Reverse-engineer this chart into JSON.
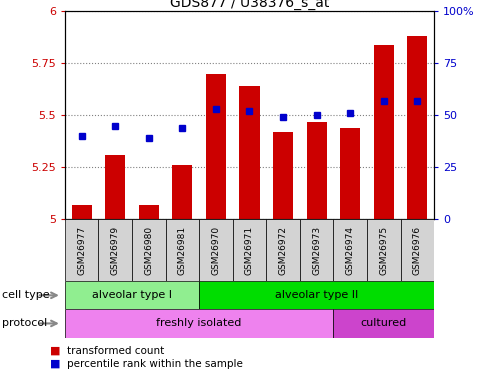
{
  "title": "GDS877 / U38376_s_at",
  "samples": [
    "GSM26977",
    "GSM26979",
    "GSM26980",
    "GSM26981",
    "GSM26970",
    "GSM26971",
    "GSM26972",
    "GSM26973",
    "GSM26974",
    "GSM26975",
    "GSM26976"
  ],
  "transformed_count": [
    5.07,
    5.31,
    5.07,
    5.26,
    5.7,
    5.64,
    5.42,
    5.47,
    5.44,
    5.84,
    5.88
  ],
  "percentile_rank": [
    40,
    45,
    39,
    44,
    53,
    52,
    49,
    50,
    51,
    57,
    57
  ],
  "ylim_left": [
    5.0,
    6.0
  ],
  "ylim_right": [
    0,
    100
  ],
  "yticks_left": [
    5.0,
    5.25,
    5.5,
    5.75,
    6.0
  ],
  "yticks_right": [
    0,
    25,
    50,
    75,
    100
  ],
  "ytick_labels_left": [
    "5",
    "5.25",
    "5.5",
    "5.75",
    "6"
  ],
  "ytick_labels_right": [
    "0",
    "25",
    "50",
    "75",
    "100%"
  ],
  "bar_color": "#cc0000",
  "dot_color": "#0000cc",
  "bar_bottom": 5.0,
  "cell_type_groups": [
    {
      "label": "alveolar type I",
      "start": 0,
      "end": 3,
      "color": "#90ee90"
    },
    {
      "label": "alveolar type II",
      "start": 4,
      "end": 10,
      "color": "#00dd00"
    }
  ],
  "protocol_groups": [
    {
      "label": "freshly isolated",
      "start": 0,
      "end": 7,
      "color": "#ee82ee"
    },
    {
      "label": "cultured",
      "start": 8,
      "end": 10,
      "color": "#cc44cc"
    }
  ],
  "legend_items": [
    {
      "label": "transformed count",
      "color": "#cc0000"
    },
    {
      "label": "percentile rank within the sample",
      "color": "#0000cc"
    }
  ],
  "cell_type_label": "cell type",
  "protocol_label": "protocol",
  "grid_color": "#808080",
  "tick_color_left": "#cc0000",
  "tick_color_right": "#0000cc",
  "background_color": "#ffffff",
  "sample_box_color": "#d3d3d3"
}
